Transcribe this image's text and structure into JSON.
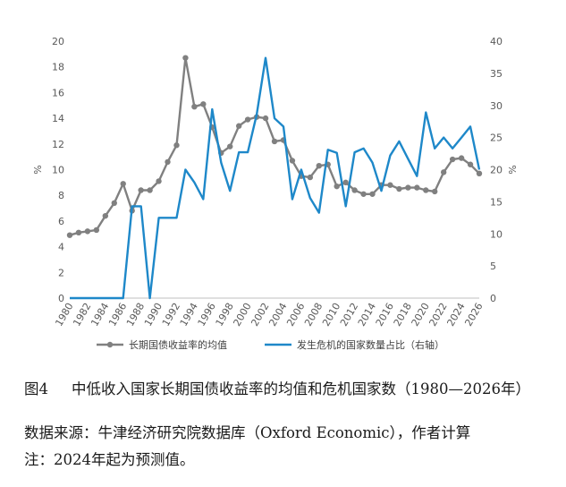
{
  "chart_data": {
    "type": "line",
    "x": [
      1980,
      1981,
      1982,
      1983,
      1984,
      1985,
      1986,
      1987,
      1988,
      1989,
      1990,
      1991,
      1992,
      1993,
      1994,
      1995,
      1996,
      1997,
      1998,
      1999,
      2000,
      2001,
      2002,
      2003,
      2004,
      2005,
      2006,
      2007,
      2008,
      2009,
      2010,
      2011,
      2012,
      2013,
      2014,
      2015,
      2016,
      2017,
      2018,
      2019,
      2020,
      2021,
      2022,
      2023,
      2024,
      2025,
      2026
    ],
    "x_ticks": [
      "1980",
      "1982",
      "1984",
      "1986",
      "1988",
      "1990",
      "1992",
      "1994",
      "1996",
      "1998",
      "2000",
      "2002",
      "2004",
      "2006",
      "2008",
      "2010",
      "2012",
      "2014",
      "2016",
      "2018",
      "2020",
      "2022",
      "2024",
      "2026"
    ],
    "xlim": [
      1980,
      2026
    ],
    "y_left": {
      "label": "%",
      "lim": [
        0,
        20
      ],
      "ticks": [
        "0",
        "2",
        "4",
        "6",
        "8",
        "10",
        "12",
        "14",
        "16",
        "18",
        "20"
      ]
    },
    "y_right": {
      "label": "%",
      "lim": [
        0,
        40
      ],
      "ticks": [
        "0",
        "5",
        "10",
        "15",
        "20",
        "25",
        "30",
        "35",
        "40"
      ]
    },
    "series": [
      {
        "name": "长期国债收益率的均值",
        "axis": "left",
        "color": "#808080",
        "markers": true,
        "values": [
          4.9,
          5.1,
          5.2,
          5.3,
          6.4,
          7.4,
          8.9,
          6.8,
          8.4,
          8.4,
          9.1,
          10.6,
          11.9,
          18.7,
          14.9,
          15.1,
          13.3,
          11.3,
          11.8,
          13.4,
          13.9,
          14.1,
          14.0,
          12.2,
          12.3,
          10.7,
          9.5,
          9.4,
          10.3,
          10.4,
          8.7,
          9.0,
          8.4,
          8.1,
          8.1,
          8.8,
          8.8,
          8.5,
          8.6,
          8.6,
          8.4,
          8.3,
          9.8,
          10.8,
          10.9,
          10.4,
          9.7
        ]
      },
      {
        "name": "发生危机的国家数量占比（右轴）",
        "axis": "right",
        "color": "#1e88c9",
        "markers": false,
        "values": [
          0,
          0,
          0,
          0,
          0,
          0,
          0,
          14.3,
          14.3,
          0,
          12.5,
          12.5,
          12.5,
          20.0,
          18.0,
          15.4,
          29.4,
          21.1,
          16.7,
          22.7,
          22.7,
          28.6,
          37.4,
          28.0,
          26.7,
          15.4,
          20.0,
          15.6,
          13.3,
          23.1,
          22.6,
          14.3,
          22.7,
          23.3,
          21.1,
          16.7,
          22.2,
          24.4,
          21.7,
          19.0,
          28.9,
          23.3,
          25.0,
          23.3,
          25.0,
          26.7,
          20.0
        ]
      }
    ],
    "legend": "bottom",
    "grid": false
  },
  "caption": {
    "fig_label": "图4",
    "title": "中低收入国家长期国债收益率的均值和危机国家数（1980—2026年）",
    "source": "数据来源：牛津经济研究院数据库（Oxford Economic），作者计算",
    "note": "注：2024年起为预测值。"
  }
}
